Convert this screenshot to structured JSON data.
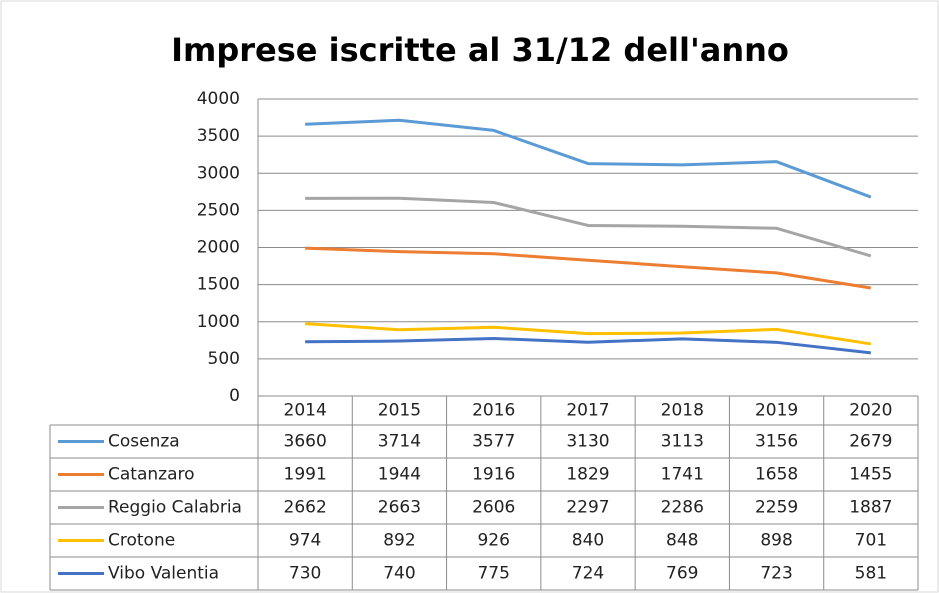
{
  "chart_data": {
    "type": "line",
    "title": "Imprese iscritte al 31/12 dell'anno",
    "categories": [
      "2014",
      "2015",
      "2016",
      "2017",
      "2018",
      "2019",
      "2020"
    ],
    "series": [
      {
        "name": "Cosenza",
        "color": "#5b9bd5",
        "values": [
          3660,
          3714,
          3577,
          3130,
          3113,
          3156,
          2679
        ]
      },
      {
        "name": "Catanzaro",
        "color": "#ed7d31",
        "values": [
          1991,
          1944,
          1916,
          1829,
          1741,
          1658,
          1455
        ]
      },
      {
        "name": "Reggio Calabria",
        "color": "#a5a5a5",
        "values": [
          2662,
          2663,
          2606,
          2297,
          2286,
          2259,
          1887
        ]
      },
      {
        "name": "Crotone",
        "color": "#ffc000",
        "values": [
          974,
          892,
          926,
          840,
          848,
          898,
          701
        ]
      },
      {
        "name": "Vibo Valentia",
        "color": "#4472c4",
        "values": [
          730,
          740,
          775,
          724,
          769,
          723,
          581
        ]
      }
    ],
    "ylim": [
      0,
      4000
    ],
    "yticks": [
      0,
      500,
      1000,
      1500,
      2000,
      2500,
      3000,
      3500,
      4000
    ],
    "grid": true
  }
}
